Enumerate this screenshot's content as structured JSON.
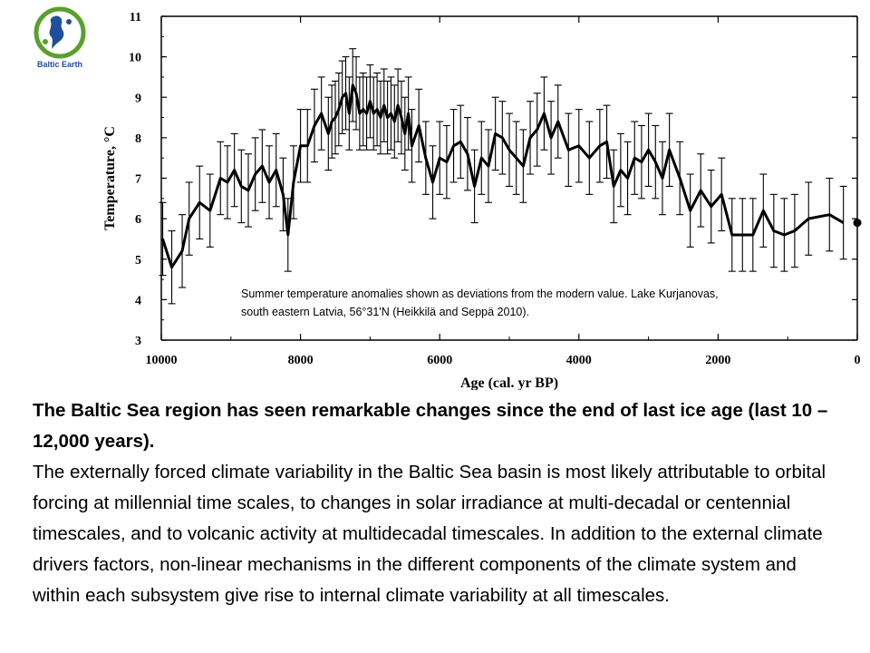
{
  "logo": {
    "text": "Baltic Earth",
    "colors": {
      "primary": "#1f4e9c",
      "accent": "#5aa02c"
    }
  },
  "chart_data": {
    "type": "line",
    "title": "",
    "xlabel": "Age (cal. yr BP)",
    "ylabel": "Temperature, °C",
    "xlim": [
      10000,
      0
    ],
    "ylim": [
      3,
      11
    ],
    "x_reversed": true,
    "xticks": [
      10000,
      8000,
      6000,
      4000,
      2000,
      0
    ],
    "yticks": [
      3,
      4,
      5,
      6,
      7,
      8,
      9,
      10,
      11
    ],
    "error_bar": 0.9,
    "annotation": "Summer temperature anomalies shown  as deviations from the modern value. Lake Kurjanovas, south eastern Latvia, 56°31'N (Heikkilä and Seppä 2010).",
    "series": [
      {
        "x": [
          9980,
          9850,
          9700,
          9600,
          9450,
          9300,
          9150,
          9050,
          8950,
          8850,
          8750,
          8650,
          8550,
          8450,
          8350,
          8250,
          8180,
          8100,
          8000,
          7900,
          7800,
          7700,
          7600,
          7550,
          7500,
          7450,
          7400,
          7350,
          7300,
          7250,
          7200,
          7150,
          7100,
          7050,
          7000,
          6950,
          6900,
          6850,
          6800,
          6750,
          6700,
          6650,
          6600,
          6550,
          6500,
          6450,
          6400,
          6300,
          6200,
          6100,
          6000,
          5900,
          5800,
          5700,
          5600,
          5500,
          5400,
          5300,
          5200,
          5100,
          5000,
          4900,
          4800,
          4700,
          4600,
          4500,
          4400,
          4300,
          4150,
          4000,
          3850,
          3700,
          3600,
          3500,
          3400,
          3300,
          3200,
          3100,
          3000,
          2900,
          2800,
          2700,
          2550,
          2400,
          2250,
          2100,
          1950,
          1800,
          1650,
          1500,
          1350,
          1200,
          1050,
          900,
          700,
          400,
          200
        ],
        "values": [
          5.5,
          4.8,
          5.2,
          6.0,
          6.4,
          6.2,
          7.0,
          6.9,
          7.2,
          6.8,
          6.7,
          7.1,
          7.3,
          6.9,
          7.2,
          6.6,
          5.6,
          6.9,
          7.8,
          7.8,
          8.3,
          8.6,
          8.1,
          8.4,
          8.5,
          8.7,
          9.0,
          9.1,
          8.6,
          9.3,
          9.1,
          8.6,
          8.7,
          8.6,
          8.9,
          8.6,
          8.7,
          8.5,
          8.8,
          8.5,
          8.6,
          8.4,
          8.8,
          8.5,
          8.1,
          8.6,
          7.8,
          8.3,
          7.5,
          6.9,
          7.5,
          7.4,
          7.8,
          7.9,
          7.6,
          6.8,
          7.5,
          7.3,
          8.1,
          8.0,
          7.7,
          7.5,
          7.3,
          8.0,
          8.2,
          8.6,
          8.0,
          8.4,
          7.7,
          7.8,
          7.5,
          7.8,
          7.9,
          6.8,
          7.2,
          7.0,
          7.5,
          7.4,
          7.7,
          7.4,
          7.0,
          7.7,
          7.0,
          6.2,
          6.7,
          6.3,
          6.6,
          5.6,
          5.6,
          5.6,
          6.2,
          5.7,
          5.6,
          5.7,
          6.0,
          6.1,
          5.9
        ]
      }
    ],
    "final_point": {
      "x": 0,
      "y": 5.9
    }
  },
  "text": {
    "headline": "The Baltic Sea region has seen remarkable changes since the end of last ice age (last 10 – 12,000 years).",
    "paragraph": "The externally forced climate variability in the Baltic Sea basin is most likely attributable to orbital forcing at millennial time scales, to changes in solar irradiance at multi-decadal or centennial timescales, and to volcanic activity at multidecadal timescales. In addition to the external climate drivers factors, non-linear mechanisms in the different components of the climate system and within each subsystem give rise to internal climate variability at all timescales."
  }
}
